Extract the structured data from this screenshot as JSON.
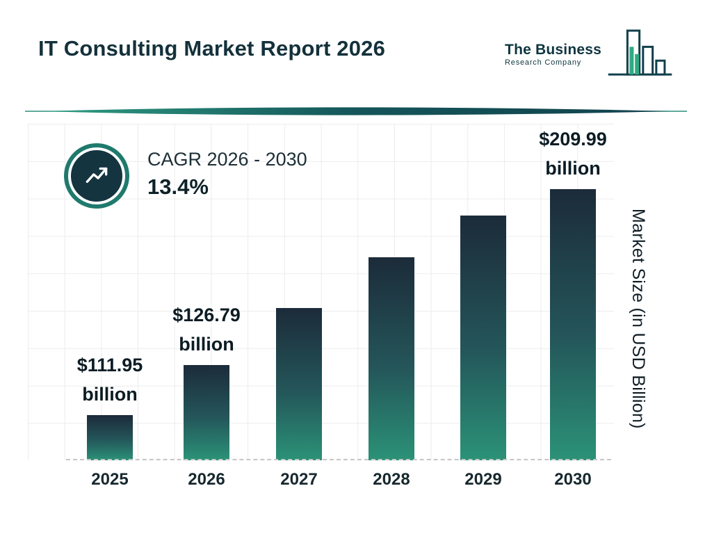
{
  "header": {
    "title": "IT Consulting Market Report 2026",
    "logo": {
      "name_line1": "The Business",
      "name_line2": "Research Company"
    }
  },
  "cagr_badge": {
    "label": "CAGR 2026 - 2030",
    "value": "13.4%",
    "icon": "trend-up-arrow-icon"
  },
  "chart_data": {
    "type": "bar",
    "title": "IT Consulting Market Report 2026",
    "categories": [
      "2025",
      "2026",
      "2027",
      "2028",
      "2029",
      "2030"
    ],
    "values": [
      111.95,
      126.79,
      143.78,
      163.05,
      184.9,
      209.99
    ],
    "value_labels": [
      "$111.95",
      "$126.79",
      null,
      null,
      null,
      "$209.99"
    ],
    "unit_word": "billion",
    "ylabel": "Market Size (in USD Billion)",
    "xlabel": "",
    "ylim": [
      90,
      220
    ],
    "grid": true,
    "legend_position": "none"
  },
  "colors": {
    "bar_gradient_top": "#1c2b3a",
    "bar_gradient_bottom": "#2b9277",
    "accent_teal": "#1f7a6d",
    "badge_inner_navy": "#143440",
    "logo_green": "#2faa83",
    "title_text": "#14313b",
    "grid_line": "#ececec"
  }
}
